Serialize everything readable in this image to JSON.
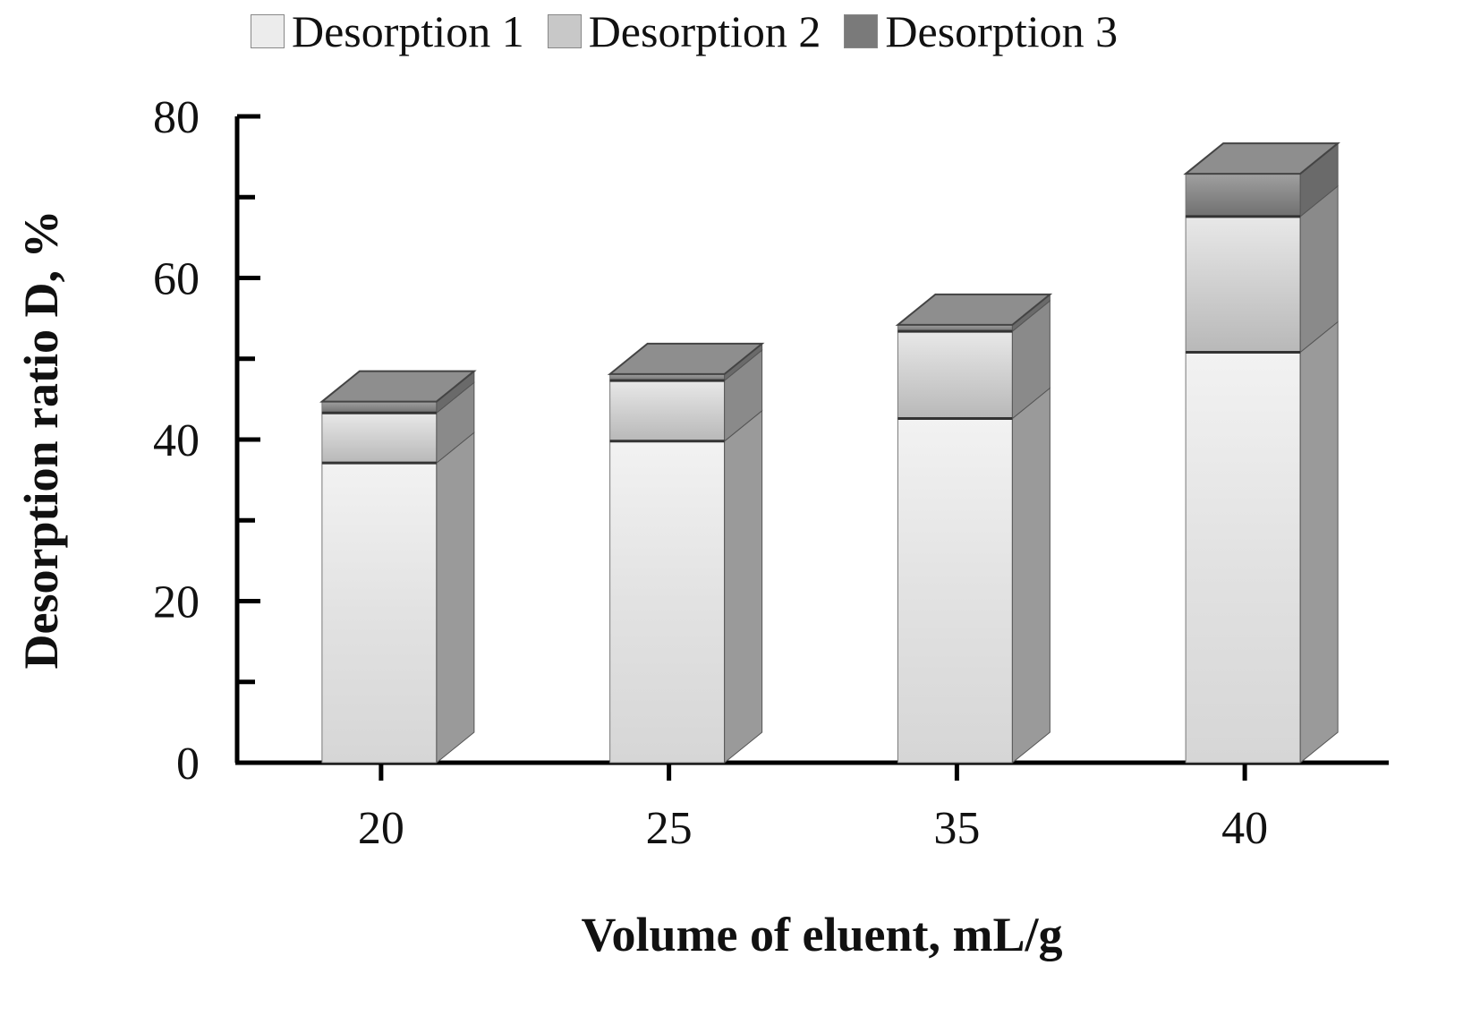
{
  "chart_data": {
    "type": "bar",
    "stacked": true,
    "style": "3d-grayscale",
    "title": "",
    "xlabel": "Volume of eluent, mL/g",
    "ylabel": "Desorption ratio D, %",
    "categories": [
      "20",
      "25",
      "35",
      "40"
    ],
    "series": [
      {
        "name": "Desorption 1",
        "values": [
          37.1,
          39.8,
          42.6,
          50.8
        ],
        "color": "#e4e4e4"
      },
      {
        "name": "Desorption 2",
        "values": [
          6.2,
          7.5,
          10.8,
          16.8
        ],
        "color": "#c8c8c8"
      },
      {
        "name": "Desorption 3",
        "values": [
          1.4,
          0.8,
          0.8,
          5.3
        ],
        "color": "#8c8c8c"
      }
    ],
    "totals": [
      44.7,
      48.1,
      54.2,
      72.9
    ],
    "ylim": [
      0,
      80
    ],
    "yticks": [
      0,
      20,
      40,
      60,
      80
    ],
    "grid": false,
    "legend_position": "top"
  },
  "legend": {
    "items": [
      {
        "label": "Desorption 1"
      },
      {
        "label": "Desorption 2"
      },
      {
        "label": "Desorption 3"
      }
    ]
  }
}
